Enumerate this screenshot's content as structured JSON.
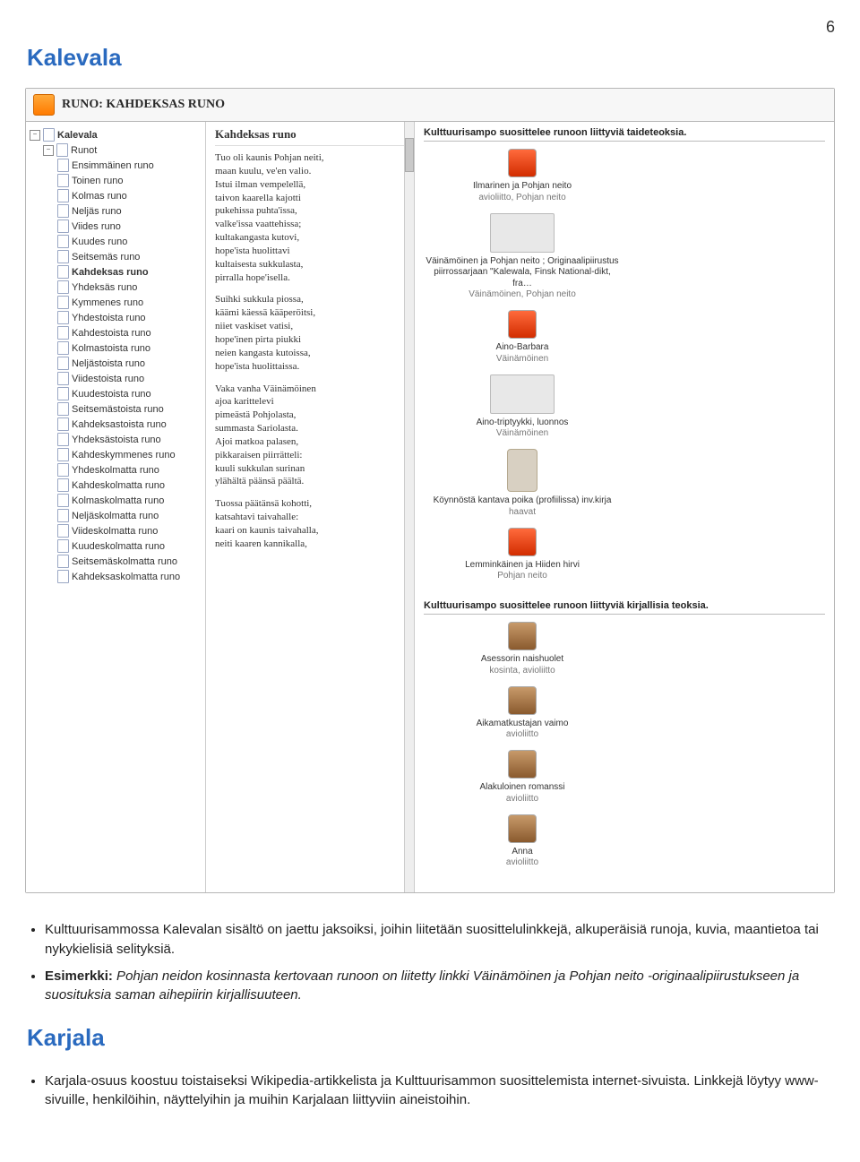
{
  "page": {
    "number": "6",
    "section_title_1": "Kalevala",
    "section_title_2": "Karjala"
  },
  "app": {
    "title": "RUNO: KAHDEKSAS RUNO",
    "tree": {
      "root": "Kalevala",
      "branch": "Runot",
      "items": [
        "Ensimmäinen runo",
        "Toinen runo",
        "Kolmas runo",
        "Neljäs runo",
        "Viides runo",
        "Kuudes runo",
        "Seitsemäs runo",
        "Kahdeksas runo",
        "Yhdeksäs runo",
        "Kymmenes runo",
        "Yhdestoista runo",
        "Kahdestoista runo",
        "Kolmastoista runo",
        "Neljästoista runo",
        "Viidestoista runo",
        "Kuudestoista runo",
        "Seitsemästoista runo",
        "Kahdeksastoista runo",
        "Yhdeksästoista runo",
        "Kahdeskymmenes runo",
        "Yhdeskolmatta runo",
        "Kahdeskolmatta runo",
        "Kolmaskolmatta runo",
        "Neljäskolmatta runo",
        "Viideskolmatta runo",
        "Kuudeskolmatta runo",
        "Seitsemäskolmatta runo",
        "Kahdeksaskolmatta runo"
      ],
      "current_index": 7
    },
    "poem": {
      "title": "Kahdeksas runo",
      "stanzas": [
        "Tuo oli kaunis Pohjan neiti,\nmaan kuulu, ve'en valio.\nIstui ilman vempelellä,\ntaivon kaarella kajotti\npukehissa puhta'issa,\nvalke'issa vaattehissa;\nkultakangasta kutovi,\nhope'ista huolittavi\nkultaisesta sukkulasta,\npirralla hope'isella.",
        "Suihki sukkula piossa,\nkäämi käessä kääperöitsi,\nniiet vaskiset vatisi,\nhope'inen pirta piukki\nneien kangasta kutoissa,\nhope'ista huolittaissa.",
        "Vaka vanha Väinämöinen\najoa karittelevi\npimeästä Pohjolasta,\nsummasta Sariolasta.\nAjoi matkoa palasen,\npikkaraisen piirrätteli:\nkuuli sukkulan surinan\nylähältä päänsä päältä.",
        "Tuossa päätänsä kohotti,\nkatsahtavi taivahalle:\nkaari on kaunis taivahalla,\nneiti kaaren kannikalla,"
      ]
    },
    "recs_art": {
      "heading": "Kulttuurisampo suosittelee runoon liittyviä taideteoksia.",
      "items": [
        {
          "title": "Ilmarinen ja Pohjan neito",
          "sub": "avioliitto, Pohjan neito",
          "style": "red"
        },
        {
          "title": "Väinämöinen ja Pohjan neito ; Originaalipiirustus piirrossarjaan \"Kalewala, Finsk National-dikt, fra…",
          "sub": "Väinämöinen, Pohjan neito",
          "style": "art"
        },
        {
          "title": "Aino-Barbara",
          "sub": "Väinämöinen",
          "style": "red"
        },
        {
          "title": "Aino-triptyykki, luonnos",
          "sub": "Väinämöinen",
          "style": "art"
        },
        {
          "title": "Köynnöstä kantava poika (profiilissa) inv.kirja",
          "sub": "haavat",
          "style": "portrait"
        },
        {
          "title": "Lemminkäinen ja Hiiden hirvi",
          "sub": "Pohjan neito",
          "style": "red"
        }
      ]
    },
    "recs_books": {
      "heading": "Kulttuurisampo suosittelee runoon liittyviä kirjallisia teoksia.",
      "items": [
        {
          "title": "Asessorin naishuolet",
          "sub": "kosinta, avioliitto"
        },
        {
          "title": "Aikamatkustajan vaimo",
          "sub": "avioliitto"
        },
        {
          "title": "Alakuloinen romanssi",
          "sub": "avioliitto"
        },
        {
          "title": "Anna",
          "sub": "avioliitto"
        }
      ]
    }
  },
  "body": {
    "bullet1": "Kulttuurisammossa Kalevalan sisältö on jaettu jaksoiksi, joihin liitetään suosittelulinkkejä, alkuperäisiä runoja, kuvia, maantietoa tai nykykielisiä selityksiä.",
    "example_label": "Esimerkki:",
    "example_text": " Pohjan neidon kosinnasta kertovaan runoon on liitetty linkki Väinämöinen ja Pohjan neito -originaalipiirustukseen ja suosituksia saman aihepiirin kirjallisuuteen.",
    "bullet2": "Karjala-osuus koostuu toistaiseksi  Wikipedia-artikkelista ja Kulttuurisammon suosittelemista internet-sivuista. Linkkejä löytyy www-sivuille, henkilöihin, näyttelyihin ja muihin Karjalaan liittyviin aineistoihin."
  },
  "colors": {
    "section_title": "#2a6abf",
    "border": "#b5b5b5"
  }
}
